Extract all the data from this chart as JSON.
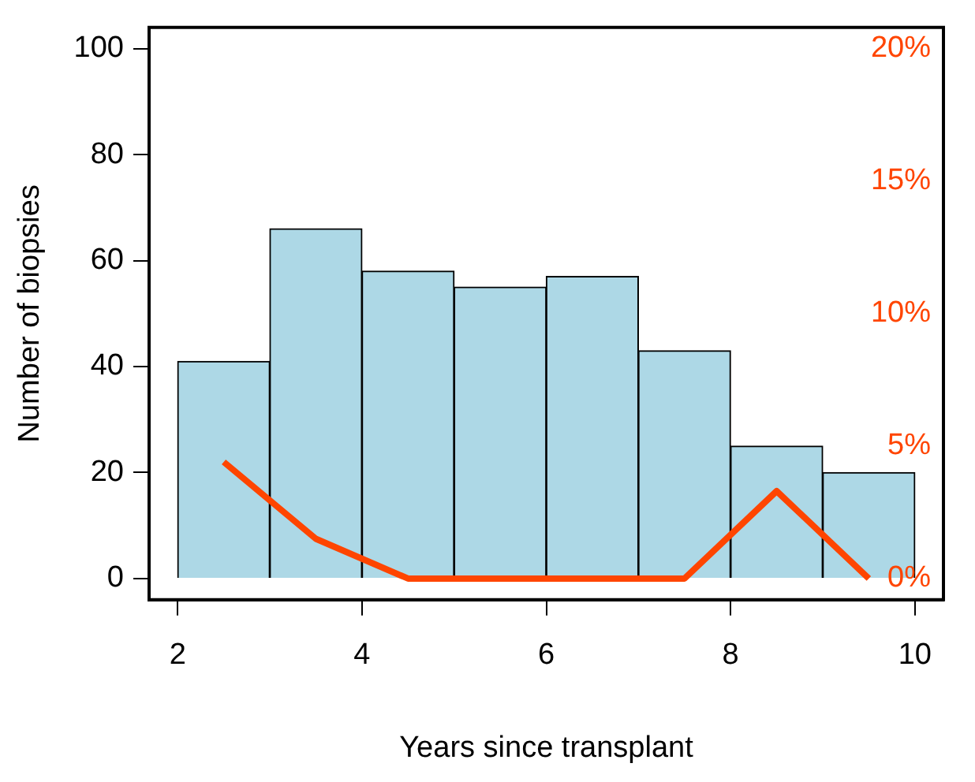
{
  "chart_data": {
    "type": "histogram",
    "xlabel": "Years since transplant",
    "ylabel": "Number of biopsies",
    "xlim": [
      1.69,
      10.31
    ],
    "xticks": [
      2,
      4,
      6,
      8,
      10
    ],
    "ylim": [
      -4,
      104
    ],
    "yticks": [
      0,
      20,
      40,
      60,
      80,
      100
    ],
    "y2lim": [
      -0.8,
      20.8
    ],
    "y2ticks": [
      {
        "value": 0,
        "label": "0%"
      },
      {
        "value": 5,
        "label": "5%"
      },
      {
        "value": 10,
        "label": "10%"
      },
      {
        "value": 15,
        "label": "15%"
      },
      {
        "value": 20,
        "label": "20%"
      }
    ],
    "grid": false,
    "legend": false,
    "series": [
      {
        "type": "histogram",
        "color": "#add8e6",
        "bins": [
          2,
          3,
          4,
          5,
          6,
          7,
          8,
          9,
          10
        ],
        "values": [
          41,
          66,
          58,
          55,
          57,
          43,
          25,
          20
        ]
      },
      {
        "type": "line",
        "axis": "y2",
        "color": "#ff4500",
        "x": [
          2.5,
          3.5,
          4.5,
          5.5,
          6.5,
          7.5,
          8.5,
          9.5
        ],
        "values": [
          4.4,
          1.5,
          0,
          0,
          0,
          0,
          3.3,
          0
        ]
      }
    ]
  }
}
